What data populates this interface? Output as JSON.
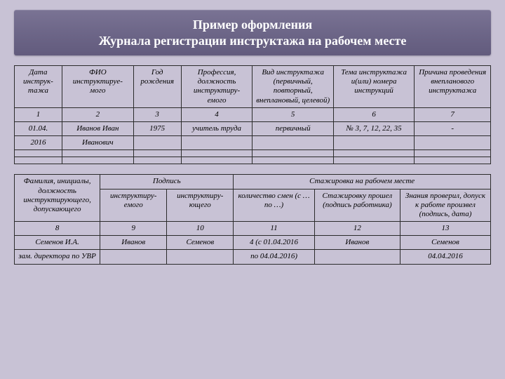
{
  "title": {
    "line1": "Пример оформления",
    "line2": "Журнала регистрации инструктажа на рабочем месте"
  },
  "table1": {
    "headers": [
      "Дата инструк-тажа",
      "ФИО инструктируе-мого",
      "Год рождения",
      "Профессия, должность инструктиру-емого",
      "Вид инструктажа (первичный, повторный, внеплановый, целевой)",
      "Тема инструктажа и(или) номера инструкций",
      "Причина проведения внепланового инструктажа"
    ],
    "numrow": [
      "1",
      "2",
      "3",
      "4",
      "5",
      "6",
      "7"
    ],
    "r1": [
      "01.04.",
      "Иванов Иван",
      "1975",
      "учитель труда",
      "первичный",
      "№ 3, 7, 12, 22, 35",
      "-"
    ],
    "r2": [
      "2016",
      "Иванович",
      "",
      "",
      "",
      "",
      ""
    ]
  },
  "table2": {
    "h_main": "Фамилия, инициалы, должность инструктирующего, допускающего",
    "h_sign": "Подпись",
    "h_internship": "Стажировка на рабочем месте",
    "h_sign_a": "инструктиру-емого",
    "h_sign_b": "инструктиру-ющего",
    "h_int_a": "количество смен (с … по …)",
    "h_int_b": "Стажировку прошел (подпись работника)",
    "h_int_c": "Знания проверил, допуск к работе произвел (подпись, дата)",
    "numrow": [
      "8",
      "9",
      "10",
      "11",
      "12",
      "13"
    ],
    "r1": [
      "Семенов И.А.",
      "Иванов",
      "Семенов",
      "4 (с 01.04.2016",
      "Иванов",
      "Семенов"
    ],
    "r2": [
      "зам. директора по УВР",
      "",
      "",
      "по 04.04.2016)",
      "",
      "04.04.2016"
    ]
  },
  "style": {
    "col_widths_t1": [
      "10%",
      "15%",
      "10%",
      "15%",
      "17%",
      "17%",
      "16%"
    ],
    "col_widths_t2": [
      "18%",
      "14%",
      "14%",
      "17%",
      "18%",
      "19%"
    ]
  }
}
